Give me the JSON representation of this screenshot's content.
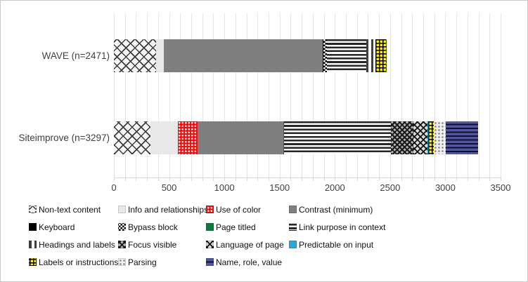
{
  "chart_data": {
    "type": "bar",
    "orientation": "horizontal-stacked",
    "title": "",
    "xlabel": "",
    "ylabel": "",
    "grid": true,
    "legend_position": "bottom",
    "categories": [
      "WAVE (n=2471)",
      "Siteimprove (n=3297)"
    ],
    "totals": [
      2471,
      3297
    ],
    "x_axis": {
      "min": 0,
      "max": 3500,
      "major_tick": 500,
      "minor_gridline": 100,
      "tick_labels": [
        "0",
        "500",
        "1000",
        "1500",
        "2000",
        "2500",
        "3000",
        "3500"
      ]
    },
    "series": [
      {
        "name": "Non-text content",
        "values": [
          380,
          330
        ],
        "pattern": "diamond-lattice",
        "color": "#3c3c3c"
      },
      {
        "name": "Info and relationships",
        "values": [
          75,
          250
        ],
        "pattern": "solid-lightgray",
        "color": "#e8e8e8"
      },
      {
        "name": "Use of color",
        "values": [
          0,
          180
        ],
        "pattern": "dots-white-on-red",
        "color": "#ee1111"
      },
      {
        "name": "Contrast (minimum)",
        "values": [
          1433,
          775
        ],
        "pattern": "solid-gray",
        "color": "#7f7f7f"
      },
      {
        "name": "Keyboard",
        "values": [
          8,
          0
        ],
        "pattern": "solid-black",
        "color": "#000000"
      },
      {
        "name": "Bypass block",
        "values": [
          30,
          0
        ],
        "pattern": "checkerboard",
        "color": "#000000"
      },
      {
        "name": "Page titled",
        "values": [
          0,
          8
        ],
        "pattern": "solid-green",
        "color": "#0c7c3e"
      },
      {
        "name": "Link purpose in context",
        "values": [
          360,
          965
        ],
        "pattern": "h-stripes",
        "color": "#262626"
      },
      {
        "name": "Headings and labels",
        "values": [
          80,
          0
        ],
        "pattern": "v-bars",
        "color": "#404040"
      },
      {
        "name": "Focus visible",
        "values": [
          0,
          200
        ],
        "pattern": "dense-crosshatch",
        "color": "#191919"
      },
      {
        "name": "Language of page",
        "values": [
          0,
          130
        ],
        "pattern": "crosshatch",
        "color": "#111111"
      },
      {
        "name": "Predictable on input",
        "values": [
          0,
          10
        ],
        "pattern": "solid-cyan",
        "color": "#29a8dc"
      },
      {
        "name": "Labels or instructions",
        "values": [
          95,
          47
        ],
        "pattern": "grid-on-yellow",
        "color": "#ffec00"
      },
      {
        "name": "Parsing",
        "values": [
          0,
          112
        ],
        "pattern": "dots-gray",
        "color": "#8c8c8c"
      },
      {
        "name": "Name, role, value",
        "values": [
          10,
          290
        ],
        "pattern": "navy-stripes",
        "color": "#5056a0"
      }
    ]
  }
}
